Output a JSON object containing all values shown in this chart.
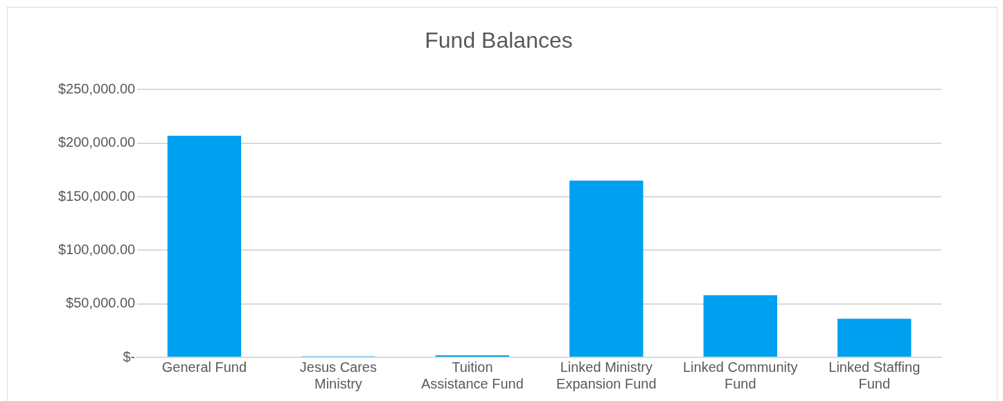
{
  "chart_data": {
    "type": "bar",
    "title": "Fund Balances",
    "categories": [
      "General Fund",
      "Jesus Cares Ministry",
      "Tuition Assistance Fund",
      "Linked Ministry Expansion Fund",
      "Linked Community Fund",
      "Linked Staffing Fund"
    ],
    "values": [
      207000,
      1000,
      2000,
      165000,
      58000,
      36000
    ],
    "color": "#00a0f0",
    "ylim": [
      0,
      250000
    ],
    "yticks": [
      {
        "value": 0,
        "label": "$-"
      },
      {
        "value": 50000,
        "label": "$50,000.00"
      },
      {
        "value": 100000,
        "label": "$100,000.00"
      },
      {
        "value": 150000,
        "label": "$150,000.00"
      },
      {
        "value": 200000,
        "label": "$200,000.00"
      },
      {
        "value": 250000,
        "label": "$250,000.00"
      }
    ],
    "grid": "y"
  }
}
